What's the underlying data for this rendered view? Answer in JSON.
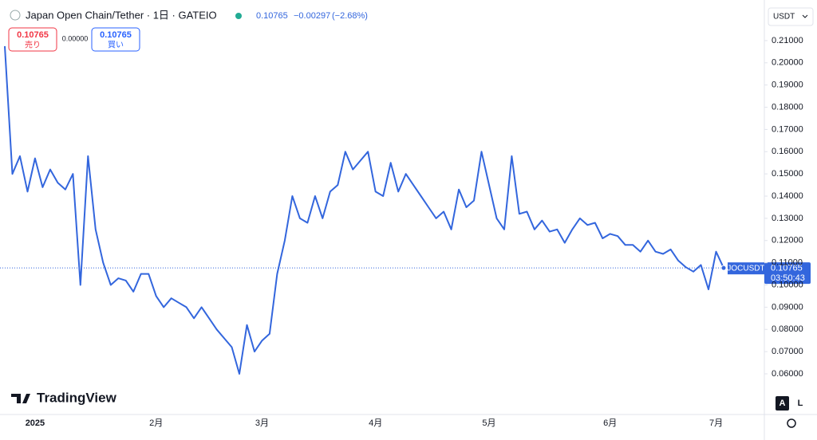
{
  "header": {
    "title": "Japan Open Chain/Tether · 1日 · GATEIO",
    "last": "0.10765",
    "change": "−0.00297",
    "change_pct": "(−2.68%)"
  },
  "trade_panel": {
    "sell_price": "0.10765",
    "sell_label": "売り",
    "spread": "0.00000",
    "buy_price": "0.10765",
    "buy_label": "買い"
  },
  "currency": "USDT",
  "price_tag": {
    "symbol": "JOCUSDT",
    "price": "0.10765",
    "countdown": "03:50:43"
  },
  "logo": "TradingView",
  "scale_buttons": [
    "A",
    "L"
  ],
  "chart_data": {
    "type": "line",
    "grid": false,
    "categories": [
      null,
      null,
      null,
      null,
      "2025",
      null,
      null,
      null,
      null,
      null,
      null,
      null,
      null,
      null,
      null,
      null,
      null,
      null,
      null,
      null,
      "2月",
      null,
      null,
      null,
      null,
      null,
      null,
      null,
      null,
      null,
      null,
      null,
      null,
      null,
      "3月",
      null,
      null,
      null,
      null,
      null,
      null,
      null,
      null,
      null,
      null,
      null,
      null,
      null,
      null,
      "4月",
      null,
      null,
      null,
      null,
      null,
      null,
      null,
      null,
      null,
      null,
      null,
      null,
      null,
      null,
      "5月",
      null,
      null,
      null,
      null,
      null,
      null,
      null,
      null,
      null,
      null,
      null,
      null,
      null,
      null,
      null,
      "6月",
      null,
      null,
      null,
      null,
      null,
      null,
      null,
      null,
      null,
      null,
      null,
      null,
      null,
      "7月",
      null
    ],
    "series": [
      {
        "name": "JOCUSDT",
        "color": "#3366dd",
        "values": [
          0.2075,
          0.15,
          0.158,
          0.142,
          0.157,
          0.144,
          0.152,
          0.146,
          0.143,
          0.15,
          0.1,
          0.158,
          0.125,
          0.11,
          0.1,
          0.103,
          0.102,
          0.097,
          0.105,
          0.105,
          0.095,
          0.09,
          0.094,
          0.092,
          0.09,
          0.085,
          0.09,
          0.085,
          0.08,
          0.076,
          0.072,
          0.06,
          0.082,
          0.07,
          0.075,
          0.078,
          0.105,
          0.12,
          0.14,
          0.13,
          0.128,
          0.14,
          0.13,
          0.142,
          0.145,
          0.16,
          0.152,
          0.156,
          0.16,
          0.142,
          0.14,
          0.155,
          0.142,
          0.15,
          0.145,
          0.14,
          0.135,
          0.13,
          0.133,
          0.125,
          0.143,
          0.135,
          0.138,
          0.16,
          0.145,
          0.13,
          0.125,
          0.158,
          0.132,
          0.133,
          0.125,
          0.129,
          0.124,
          0.125,
          0.119,
          0.125,
          0.13,
          0.127,
          0.128,
          0.121,
          0.123,
          0.122,
          0.118,
          0.118,
          0.115,
          0.12,
          0.115,
          0.114,
          0.116,
          0.111,
          0.108,
          0.106,
          0.109,
          0.098,
          0.115,
          0.10765
        ]
      }
    ],
    "ylim": [
      0.0417,
      0.2254
    ],
    "yticks": [
      {
        "value": 0.06,
        "label": "0.06000"
      },
      {
        "value": 0.07,
        "label": "0.07000"
      },
      {
        "value": 0.08,
        "label": "0.08000"
      },
      {
        "value": 0.09,
        "label": "0.09000"
      },
      {
        "value": 0.1,
        "label": "0.10000"
      },
      {
        "value": 0.11,
        "label": "0.11000"
      },
      {
        "value": 0.12,
        "label": "0.12000"
      },
      {
        "value": 0.13,
        "label": "0.13000"
      },
      {
        "value": 0.14,
        "label": "0.14000"
      },
      {
        "value": 0.15,
        "label": "0.15000"
      },
      {
        "value": 0.16,
        "label": "0.16000"
      },
      {
        "value": 0.17,
        "label": "0.17000"
      },
      {
        "value": 0.18,
        "label": "0.18000"
      },
      {
        "value": 0.19,
        "label": "0.19000"
      },
      {
        "value": 0.2,
        "label": "0.20000"
      },
      {
        "value": 0.21,
        "label": "0.21000"
      }
    ]
  }
}
